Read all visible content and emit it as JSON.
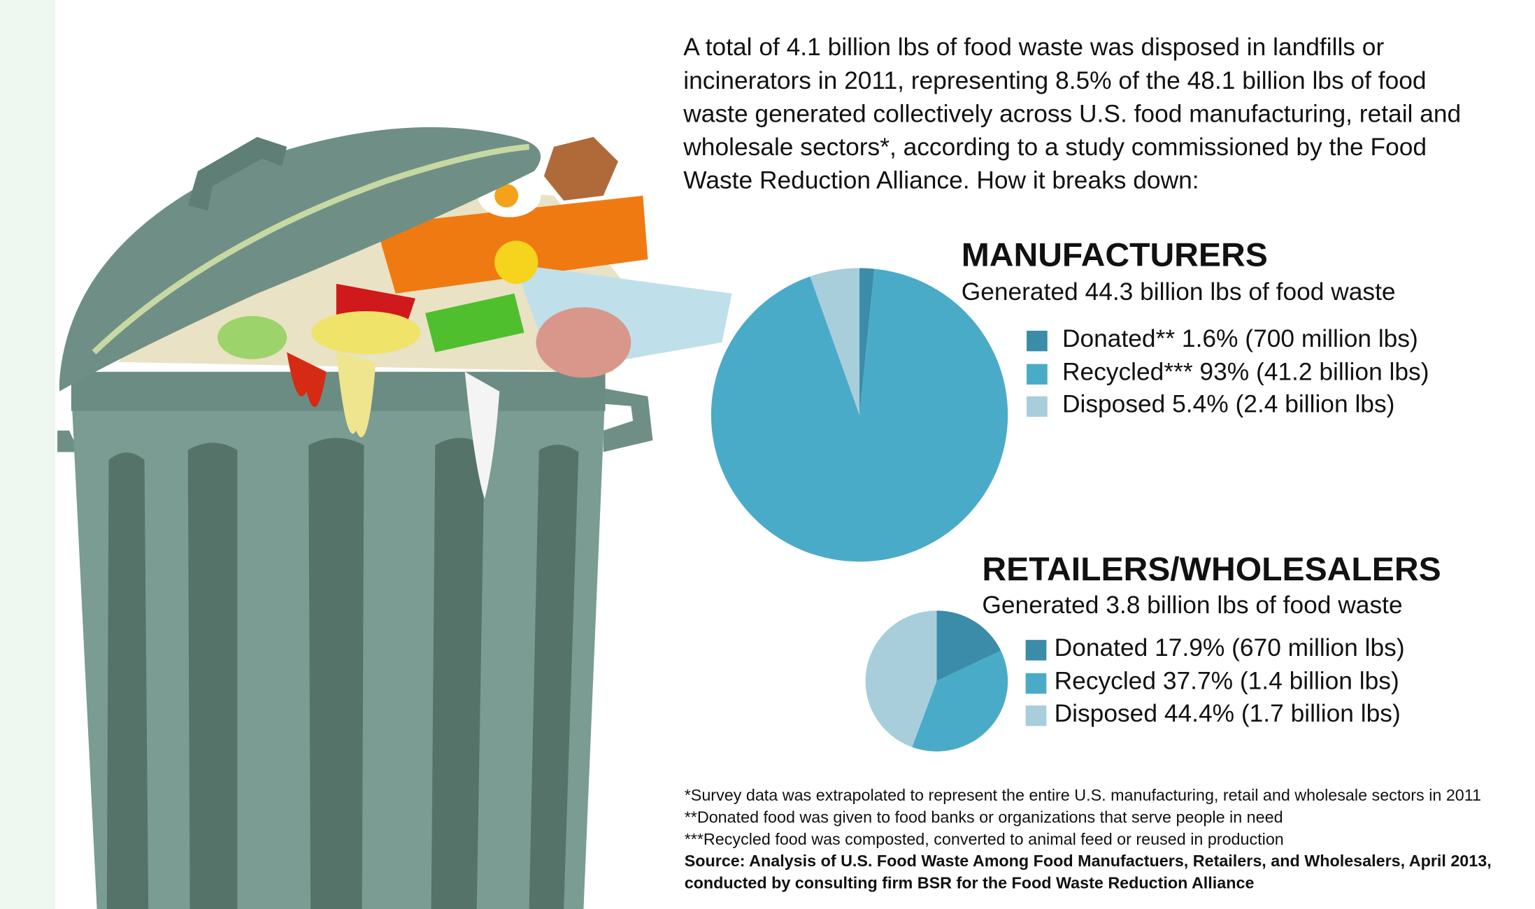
{
  "intro": [
    "A total of 4.1 billion lbs of food waste was disposed in landfills or",
    "incinerators in 2011, representing 8.5% of the 48.1 billion lbs of food",
    "waste generated collectively across U.S. food manufacturing, retail and",
    "wholesale sectors*, according to a study commissioned by the Food",
    "Waste Reduction Alliance. How it breaks down:"
  ],
  "chart_data": [
    {
      "type": "pie",
      "title": "MANUFACTURERS",
      "subtitle": "Generated 44.3 billion lbs of food waste",
      "categories": [
        "Donated**",
        "Recycled***",
        "Disposed"
      ],
      "values": [
        1.6,
        93,
        5.4
      ],
      "value_labels": [
        "1.6% (700 million lbs)",
        "93% (41.2 billion lbs)",
        "5.4% (2.4 billion lbs)"
      ],
      "colors": [
        "#3a8ca8",
        "#4aabc8",
        "#a8cedc"
      ]
    },
    {
      "type": "pie",
      "title": "RETAILERS/WHOLESALERS",
      "subtitle": "Generated 3.8 billion lbs of food waste",
      "categories": [
        "Donated",
        "Recycled",
        "Disposed"
      ],
      "values": [
        17.9,
        37.7,
        44.4
      ],
      "value_labels": [
        "17.9% (670 million lbs)",
        "37.7% (1.4 billion lbs)",
        "44.4% (1.7 billion lbs)"
      ],
      "colors": [
        "#3a8ca8",
        "#4aabc8",
        "#a8cedc"
      ]
    }
  ],
  "footnotes": [
    "*Survey data was extrapolated to represent the entire U.S. manufacturing, retail and wholesale sectors in 2011",
    "**Donated food was given to food banks or organizations that serve people in need",
    "***Recycled food was composted, converted to animal feed or reused in production"
  ],
  "source": [
    "Source: Analysis of U.S. Food Waste Among Food Manufactuers, Retailers, and Wholesalers, April 2013,",
    "conducted by consulting firm BSR for the Food Waste Reduction Alliance"
  ]
}
